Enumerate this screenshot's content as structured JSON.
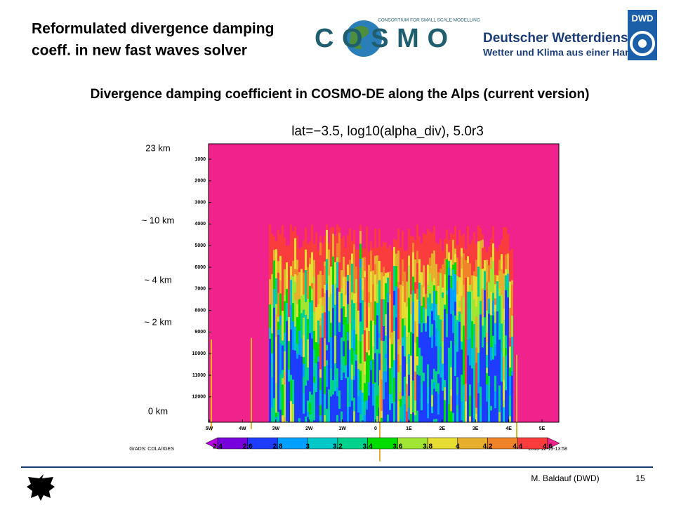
{
  "header": {
    "title": [
      "Reformulated divergence damping",
      "coeff. in new fast waves solver"
    ],
    "cosmo_logo": "COSMO",
    "cosmo_tagline": "CONSORTIUM FOR SMALL SCALE MODELLING",
    "dwd_name": "Deutscher Wetterdienst",
    "dwd_tagline": "Wetter und Klima aus einer Hand",
    "dwd_badge": "DWD"
  },
  "subtitle": "Divergence damping coefficient  in COSMO-DE along the Alps (current version)",
  "plot": {
    "title": "lat=−3.5,  log10(alpha_div),  5.0r3",
    "height_labels": [
      "23 km",
      "~ 10 km",
      "~ 4 km",
      "~ 2 km",
      "0 km"
    ],
    "yticks": [
      1000,
      2000,
      3000,
      4000,
      5000,
      6000,
      7000,
      8000,
      9000,
      10000,
      11000,
      12000
    ],
    "xticks": [
      "5W",
      "4W",
      "3W",
      "2W",
      "1W",
      "0",
      "1E",
      "2E",
      "3E",
      "4E",
      "5E"
    ],
    "background": "#f0238c",
    "colorbar": {
      "labels": [
        "2.4",
        "2.6",
        "2.8",
        "3",
        "3.2",
        "3.4",
        "3.6",
        "3.8",
        "4",
        "4.2",
        "4.4",
        "4.6"
      ],
      "colors": [
        "#b400dc",
        "#7800dc",
        "#1e3cff",
        "#00a0ff",
        "#00c8c8",
        "#00d28c",
        "#00dc00",
        "#a0e632",
        "#e6dc32",
        "#e6af2d",
        "#f08228",
        "#fa3c3c",
        "#f0238c"
      ]
    },
    "credit": "GrADS: COLA/IGES",
    "timestamp": "2013-12-13-13:58"
  },
  "footer": {
    "author": "M. Baldauf (DWD)",
    "page": "15"
  }
}
